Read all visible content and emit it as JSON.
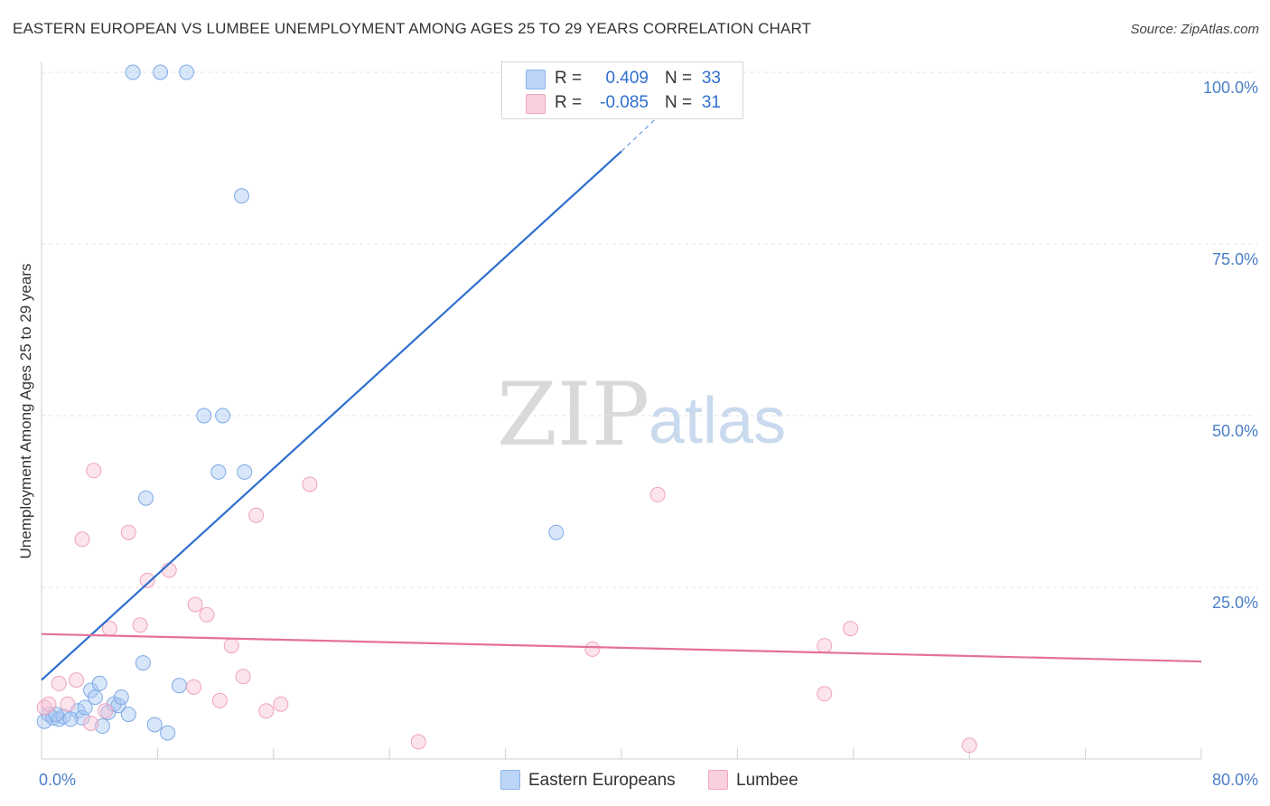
{
  "title": "EASTERN EUROPEAN VS LUMBEE UNEMPLOYMENT AMONG AGES 25 TO 29 YEARS CORRELATION CHART",
  "source": "Source: ZipAtlas.com",
  "watermark": {
    "zip": "ZIP",
    "atlas": "atlas"
  },
  "legend": {
    "rows": [
      {
        "r_label": "R =",
        "r_value": "0.409",
        "n_label": "N =",
        "n_value": "33",
        "color": "#8ab4ec",
        "fill": "#bcd4f5"
      },
      {
        "r_label": "R =",
        "r_value": "-0.085",
        "n_label": "N =",
        "n_value": "31",
        "color": "#f0a6bf",
        "fill": "#fad0de"
      }
    ]
  },
  "bottom_legend": [
    {
      "label": "Eastern Europeans",
      "fill": "#bcd4f5",
      "stroke": "#8ab4ec"
    },
    {
      "label": "Lumbee",
      "fill": "#fad0de",
      "stroke": "#f0a6bf"
    }
  ],
  "chart_data": {
    "type": "scatter",
    "title": "EASTERN EUROPEAN VS LUMBEE UNEMPLOYMENT AMONG AGES 25 TO 29 YEARS CORRELATION CHART",
    "xlabel": "",
    "ylabel": "Unemployment Among Ages 25 to 29 years",
    "xlim": [
      0,
      80
    ],
    "ylim": [
      0,
      100
    ],
    "x_tick_labels": [
      {
        "value": 0,
        "label": "0.0%"
      },
      {
        "value": 80,
        "label": "80.0%"
      }
    ],
    "y_tick_labels": [
      {
        "value": 25,
        "label": "25.0%"
      },
      {
        "value": 50,
        "label": "50.0%"
      },
      {
        "value": 75,
        "label": "75.0%"
      },
      {
        "value": 100,
        "label": "100.0%"
      }
    ],
    "grid": true,
    "legend_position": "top-center",
    "series": [
      {
        "name": "Eastern Europeans",
        "color": "#2f6fce",
        "points": [
          [
            0.2,
            5.5
          ],
          [
            0.5,
            6.5
          ],
          [
            0.8,
            6.0
          ],
          [
            1.2,
            5.8
          ],
          [
            1.5,
            6.2
          ],
          [
            2.5,
            7.0
          ],
          [
            2.8,
            6.0
          ],
          [
            3.0,
            7.5
          ],
          [
            3.4,
            10.0
          ],
          [
            3.7,
            9.0
          ],
          [
            4.0,
            11.0
          ],
          [
            4.2,
            4.8
          ],
          [
            4.6,
            6.8
          ],
          [
            5.0,
            8.0
          ],
          [
            5.3,
            7.8
          ],
          [
            5.5,
            9.0
          ],
          [
            6.0,
            6.5
          ],
          [
            6.3,
            100.0
          ],
          [
            7.0,
            14.0
          ],
          [
            7.2,
            38.0
          ],
          [
            7.8,
            5.0
          ],
          [
            8.2,
            100.0
          ],
          [
            8.7,
            3.8
          ],
          [
            9.5,
            10.7
          ],
          [
            10.0,
            100.0
          ],
          [
            11.2,
            50.0
          ],
          [
            12.2,
            41.8
          ],
          [
            12.5,
            50.0
          ],
          [
            13.8,
            82.0
          ],
          [
            14.0,
            41.8
          ],
          [
            35.5,
            33.0
          ],
          [
            1.0,
            6.5
          ],
          [
            2.0,
            5.8
          ]
        ],
        "trend": {
          "x0": 0,
          "y0": 11.5,
          "x1": 40,
          "y1": 88.5,
          "x_dash_end": 43,
          "y_dash_end": 94.5
        }
      },
      {
        "name": "Lumbee",
        "color": "#e5719a",
        "points": [
          [
            0.2,
            7.5
          ],
          [
            0.5,
            8.0
          ],
          [
            1.2,
            11.0
          ],
          [
            1.8,
            8.0
          ],
          [
            2.4,
            11.5
          ],
          [
            2.8,
            32.0
          ],
          [
            3.6,
            42.0
          ],
          [
            3.4,
            5.2
          ],
          [
            4.4,
            7.0
          ],
          [
            4.7,
            19.0
          ],
          [
            6.0,
            33.0
          ],
          [
            6.8,
            19.5
          ],
          [
            7.3,
            26.0
          ],
          [
            8.8,
            27.5
          ],
          [
            10.5,
            10.5
          ],
          [
            10.6,
            22.5
          ],
          [
            11.4,
            21.0
          ],
          [
            12.3,
            8.5
          ],
          [
            13.1,
            16.5
          ],
          [
            13.9,
            12.0
          ],
          [
            14.8,
            35.5
          ],
          [
            15.5,
            7.0
          ],
          [
            16.5,
            8.0
          ],
          [
            18.5,
            40.0
          ],
          [
            26.0,
            2.5
          ],
          [
            38.0,
            16.0
          ],
          [
            42.5,
            38.5
          ],
          [
            54.0,
            9.5
          ],
          [
            54.0,
            16.5
          ],
          [
            55.8,
            19.0
          ],
          [
            64.0,
            2.0
          ]
        ],
        "trend": {
          "x0": 0,
          "y0": 18.2,
          "x1": 80,
          "y1": 14.2
        }
      }
    ]
  }
}
